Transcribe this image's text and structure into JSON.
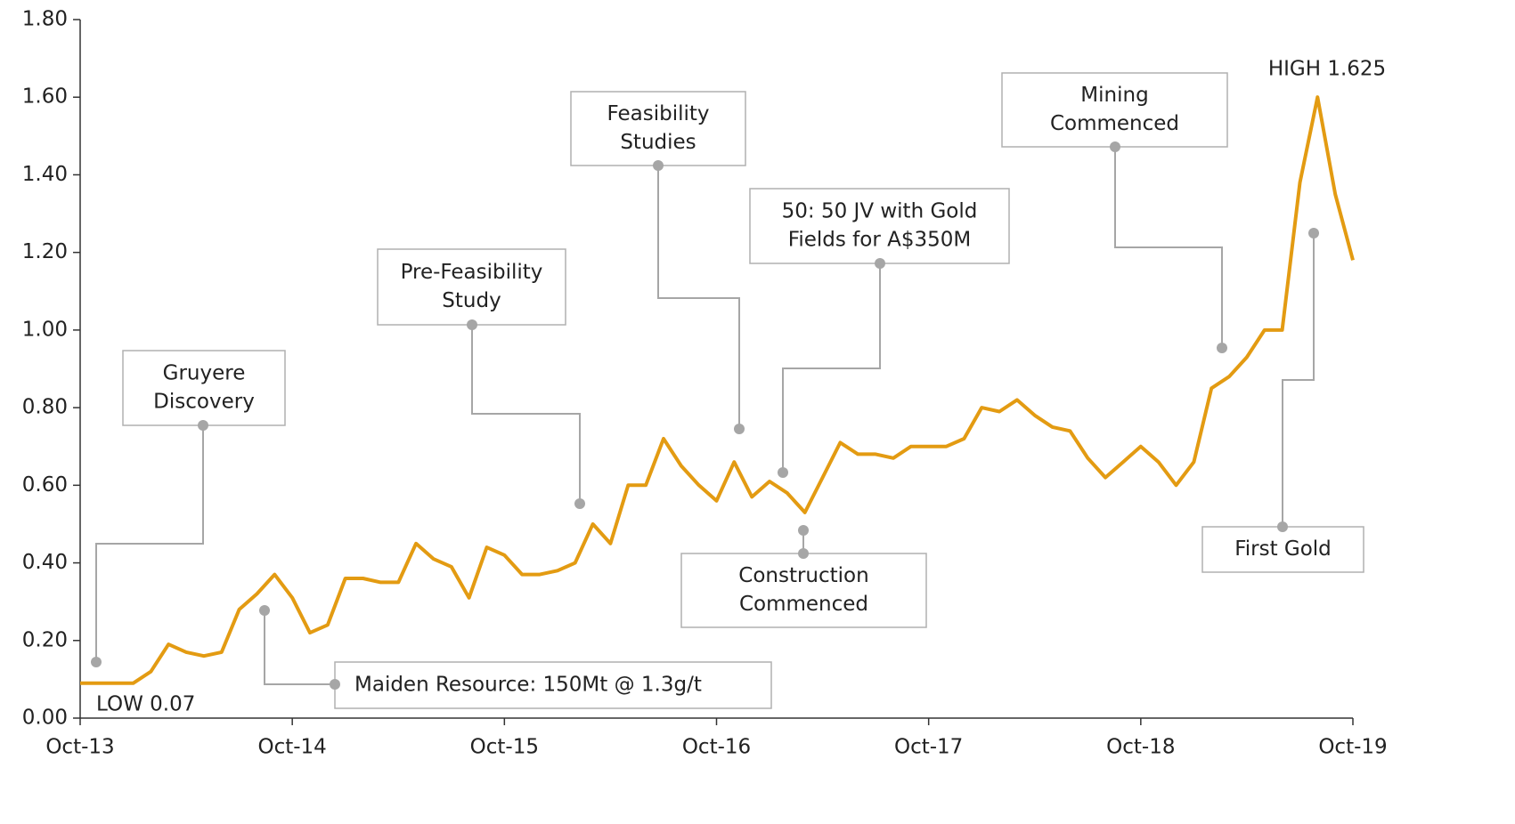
{
  "chart_data": {
    "type": "line",
    "categories": [
      "Oct-13",
      null,
      null,
      null,
      null,
      null,
      null,
      null,
      null,
      null,
      null,
      null,
      "Oct-14",
      null,
      null,
      null,
      null,
      null,
      null,
      null,
      null,
      null,
      null,
      null,
      "Oct-15",
      null,
      null,
      null,
      null,
      null,
      null,
      null,
      null,
      null,
      null,
      null,
      "Oct-16",
      null,
      null,
      null,
      null,
      null,
      null,
      null,
      null,
      null,
      null,
      null,
      "Oct-17",
      null,
      null,
      null,
      null,
      null,
      null,
      null,
      null,
      null,
      null,
      null,
      "Oct-18",
      null,
      null,
      null,
      null,
      null,
      null,
      null,
      null,
      null,
      null,
      null,
      "Oct-19"
    ],
    "series": [
      {
        "color": "#e39b12",
        "values": [
          0.09,
          0.09,
          0.09,
          0.09,
          0.12,
          0.19,
          0.17,
          0.16,
          0.17,
          0.28,
          0.32,
          0.37,
          0.31,
          0.22,
          0.24,
          0.36,
          0.36,
          0.35,
          0.35,
          0.45,
          0.41,
          0.39,
          0.31,
          0.44,
          0.42,
          0.37,
          0.37,
          0.38,
          0.4,
          0.5,
          0.45,
          0.6,
          0.6,
          0.72,
          0.65,
          0.6,
          0.56,
          0.66,
          0.57,
          0.61,
          0.58,
          0.53,
          0.62,
          0.71,
          0.68,
          0.68,
          0.67,
          0.7,
          0.7,
          0.7,
          0.72,
          0.8,
          0.79,
          0.82,
          0.78,
          0.75,
          0.74,
          0.67,
          0.62,
          0.66,
          0.7,
          0.66,
          0.6,
          0.66,
          0.85,
          0.88,
          0.93,
          1.0,
          1.0,
          1.38,
          1.6,
          1.35,
          1.18
        ]
      }
    ],
    "ylim": [
      0,
      1.8
    ],
    "yticks": [
      {
        "value": 0,
        "label": "0.00"
      },
      {
        "value": 0.2,
        "label": "0.20"
      },
      {
        "value": 0.4,
        "label": "0.40"
      },
      {
        "value": 0.6,
        "label": "0.60"
      },
      {
        "value": 0.8,
        "label": "0.80"
      },
      {
        "value": 1,
        "label": "1.00"
      },
      {
        "value": 1.2,
        "label": "1.20"
      },
      {
        "value": 1.4,
        "label": "1.40"
      },
      {
        "value": 1.6,
        "label": "1.60"
      },
      {
        "value": 1.8,
        "label": "1.80"
      }
    ],
    "annotations": [
      {
        "lines": [
          "Gruyere",
          "Discovery"
        ]
      },
      {
        "lines": [
          "Maiden Resource: 150Mt @ 1.3g/t"
        ]
      },
      {
        "lines": [
          "Pre-Feasibility",
          "Study"
        ]
      },
      {
        "lines": [
          "Feasibility",
          "Studies"
        ]
      },
      {
        "lines": [
          "50: 50 JV with Gold",
          "Fields for A$350M"
        ]
      },
      {
        "lines": [
          "Construction",
          "Commenced"
        ]
      },
      {
        "lines": [
          "Mining",
          "Commenced"
        ]
      },
      {
        "lines": [
          "First Gold"
        ]
      },
      {
        "lines": [
          "LOW 0.07"
        ]
      },
      {
        "lines": [
          "HIGH 1.625"
        ]
      }
    ]
  }
}
